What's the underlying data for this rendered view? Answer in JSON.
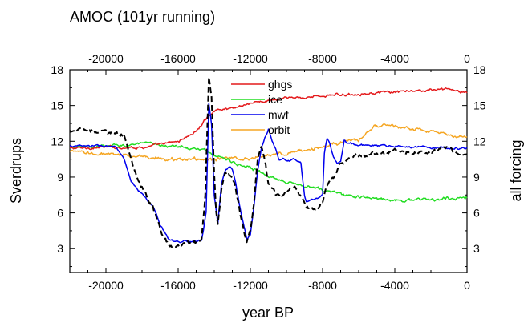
{
  "chart_data": {
    "type": "line",
    "title": "AMOC (101yr running)",
    "xlabel": "year BP",
    "ylabel": "Sverdrups",
    "ylabel_right": "all forcing",
    "xlim": [
      -22000,
      0
    ],
    "ylim": [
      1,
      18
    ],
    "xticks": [
      -20000,
      -16000,
      -12000,
      -8000,
      -4000,
      0
    ],
    "xtick_labels": [
      "-20000",
      "-16000",
      "-12000",
      "-8000",
      "-4000",
      "0"
    ],
    "yticks": [
      3,
      6,
      9,
      12,
      15,
      18
    ],
    "ytick_labels": [
      "3",
      "6",
      "9",
      "12",
      "15",
      "18"
    ],
    "legend_position": "top-center, inside plot",
    "series": [
      {
        "name": "ghgs",
        "color": "#e41a1c",
        "style": "solid",
        "noise": 0.15,
        "x": [
          -22000,
          -20000,
          -18000,
          -17000,
          -16000,
          -15000,
          -14500,
          -14000,
          -13000,
          -12000,
          -11000,
          -10000,
          -8000,
          -6000,
          -4000,
          -2000,
          -1000,
          0
        ],
        "y": [
          11.4,
          11.5,
          11.5,
          11.7,
          12.0,
          12.8,
          13.8,
          14.6,
          14.8,
          15.2,
          15.4,
          15.6,
          15.8,
          16.0,
          16.1,
          16.3,
          16.4,
          16.0
        ]
      },
      {
        "name": "ice",
        "color": "#22dd22",
        "style": "solid",
        "noise": 0.18,
        "x": [
          -22000,
          -20000,
          -18000,
          -16000,
          -15000,
          -14500,
          -14000,
          -13000,
          -12000,
          -11000,
          -10000,
          -9000,
          -8000,
          -7000,
          -6000,
          -4000,
          -2000,
          0
        ],
        "y": [
          11.4,
          11.6,
          11.8,
          11.6,
          11.3,
          11.2,
          10.9,
          10.3,
          9.7,
          9.1,
          8.7,
          8.3,
          7.9,
          7.6,
          7.3,
          7.1,
          7.1,
          7.3
        ]
      },
      {
        "name": "mwf",
        "color": "#0000ee",
        "style": "solid",
        "noise": 0.12,
        "x": [
          -22000,
          -19500,
          -19000,
          -18600,
          -18200,
          -17800,
          -17400,
          -17000,
          -16500,
          -16000,
          -15500,
          -15000,
          -14700,
          -14450,
          -14300,
          -14150,
          -14000,
          -13800,
          -13600,
          -13400,
          -13200,
          -13000,
          -12800,
          -12500,
          -12200,
          -12000,
          -11800,
          -11600,
          -11400,
          -11200,
          -11000,
          -10800,
          -10600,
          -10400,
          -10200,
          -10000,
          -9600,
          -9200,
          -9000,
          -8900,
          -8800,
          -8600,
          -8300,
          -8000,
          -7900,
          -7750,
          -7600,
          -7400,
          -7200,
          -7000,
          -6800,
          -6600,
          -6000,
          -4000,
          -2000,
          0
        ],
        "y": [
          11.6,
          11.6,
          10.5,
          8.6,
          7.8,
          7.2,
          6.6,
          5.0,
          3.8,
          3.6,
          3.6,
          3.6,
          3.7,
          6.0,
          15.2,
          13.5,
          7.5,
          5.1,
          8.5,
          9.5,
          9.9,
          9.7,
          8.4,
          5.8,
          3.8,
          4.2,
          6.5,
          9.5,
          11.3,
          12.3,
          13.0,
          12.0,
          11.3,
          10.4,
          10.5,
          10.3,
          10.5,
          10.2,
          7.4,
          6.9,
          7.0,
          7.1,
          7.2,
          7.5,
          11.0,
          12.3,
          11.8,
          10.6,
          10.1,
          10.3,
          12.0,
          11.9,
          11.7,
          11.6,
          11.5,
          11.4
        ]
      },
      {
        "name": "orbit",
        "color": "#f5a623",
        "style": "solid",
        "noise": 0.2,
        "x": [
          -22000,
          -20000,
          -18000,
          -16000,
          -14000,
          -12000,
          -10000,
          -8000,
          -6000,
          -5000,
          -4000,
          -3000,
          -2000,
          -1000,
          0
        ],
        "y": [
          11.1,
          10.9,
          10.7,
          10.5,
          10.5,
          10.6,
          11.0,
          11.5,
          12.2,
          13.3,
          13.3,
          13.0,
          12.8,
          12.5,
          12.3
        ]
      },
      {
        "name": "",
        "color": "#000000",
        "style": "dashed",
        "noise": 0.25,
        "x": [
          -22000,
          -20000,
          -19000,
          -18600,
          -18200,
          -17800,
          -17400,
          -17000,
          -16500,
          -16000,
          -15500,
          -15000,
          -14700,
          -14500,
          -14300,
          -14150,
          -14000,
          -13900,
          -13800,
          -13600,
          -13400,
          -13200,
          -13000,
          -12800,
          -12500,
          -12200,
          -12000,
          -11800,
          -11600,
          -11400,
          -11200,
          -11000,
          -10600,
          -10200,
          -10000,
          -9600,
          -9200,
          -8900,
          -8600,
          -8300,
          -8000,
          -7800,
          -7400,
          -7000,
          -6600,
          -6000,
          -5000,
          -4000,
          -3000,
          -2000,
          -1000,
          -500,
          0
        ],
        "y": [
          12.9,
          12.9,
          12.5,
          10.5,
          8.5,
          7.5,
          6.5,
          4.5,
          3.3,
          3.3,
          3.4,
          3.5,
          3.6,
          7.5,
          17.5,
          15.5,
          9.0,
          6.0,
          5.0,
          8.0,
          9.5,
          9.3,
          9.0,
          8.0,
          5.5,
          3.6,
          4.5,
          7.0,
          10.5,
          11.5,
          10.5,
          8.5,
          7.5,
          7.5,
          7.8,
          8.2,
          7.4,
          6.6,
          6.4,
          6.5,
          7.0,
          8.2,
          9.0,
          10.0,
          10.5,
          10.8,
          11.0,
          11.1,
          11.0,
          11.2,
          11.4,
          11.0,
          10.8
        ]
      }
    ]
  }
}
